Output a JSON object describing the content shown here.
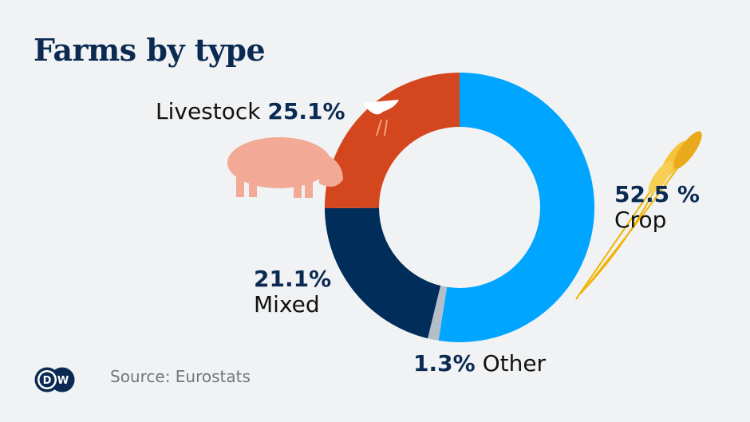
{
  "title": "Farms by type",
  "source": "Source: Eurostats",
  "logo_text": "DW",
  "chart_data": {
    "type": "pie",
    "donut": true,
    "start": "top",
    "direction": "clockwise",
    "slices": [
      {
        "name": "Crop",
        "value": 52.5,
        "label": "52.5 %",
        "color": "#00a5ff"
      },
      {
        "name": "Other",
        "value": 1.3,
        "label": "1.3%",
        "color": "#b4bec8"
      },
      {
        "name": "Mixed",
        "value": 21.1,
        "label": "21.1%",
        "color": "#002d5a"
      },
      {
        "name": "Livestock",
        "value": 25.1,
        "label": "25.1%",
        "color": "#d4461e"
      }
    ]
  }
}
